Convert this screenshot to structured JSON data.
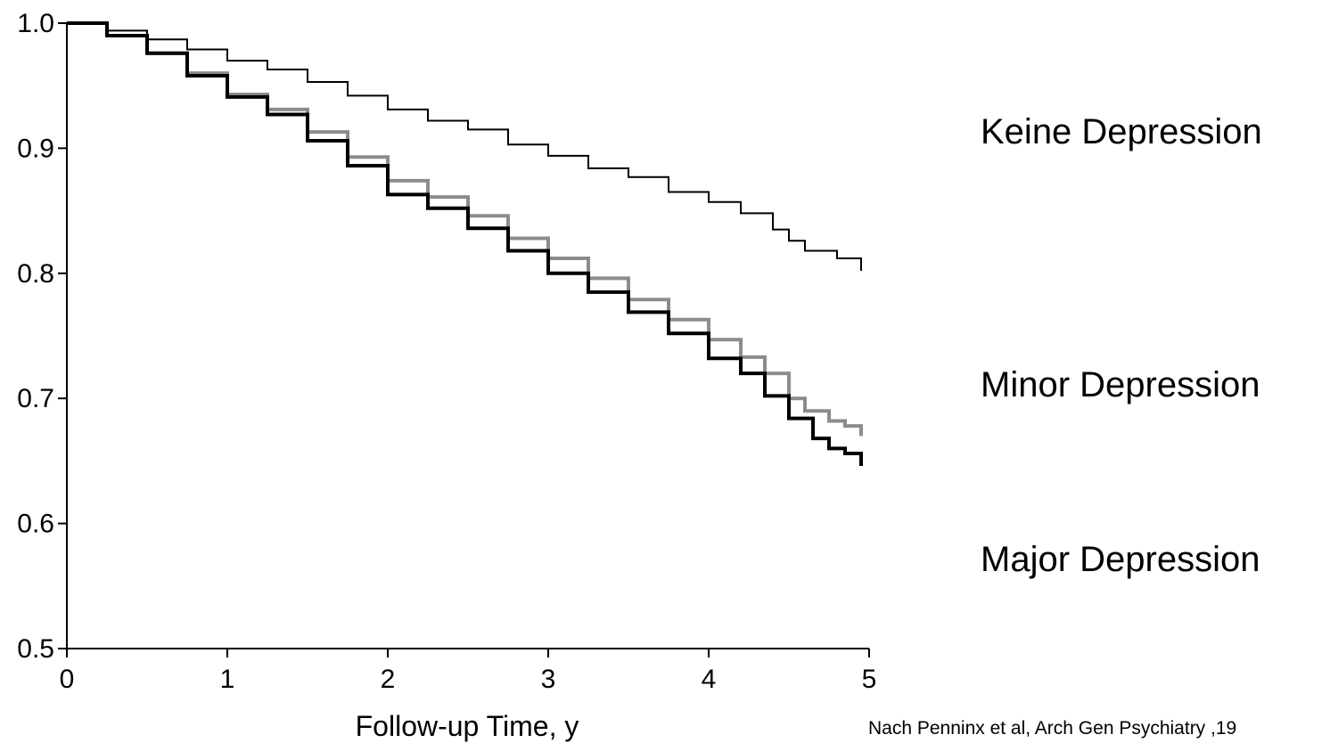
{
  "chart_data": {
    "type": "line",
    "title": "",
    "xlabel": "Follow-up Time, y",
    "ylabel": "",
    "xlim": [
      0,
      5
    ],
    "ylim": [
      0.5,
      1.0
    ],
    "x_ticks": [
      "0",
      "1",
      "2",
      "3",
      "4",
      "5"
    ],
    "y_ticks": [
      "0.5",
      "0.6",
      "0.7",
      "0.8",
      "0.9",
      "1.0"
    ],
    "grid": false,
    "legend_placement": "right",
    "series": [
      {
        "name": "Keine Depression",
        "color": "#000000",
        "points": [
          [
            0,
            1.0
          ],
          [
            0.25,
            0.994
          ],
          [
            0.5,
            0.987
          ],
          [
            0.75,
            0.979
          ],
          [
            1.0,
            0.97
          ],
          [
            1.25,
            0.963
          ],
          [
            1.5,
            0.953
          ],
          [
            1.75,
            0.942
          ],
          [
            2.0,
            0.931
          ],
          [
            2.25,
            0.922
          ],
          [
            2.5,
            0.915
          ],
          [
            2.75,
            0.903
          ],
          [
            3.0,
            0.894
          ],
          [
            3.25,
            0.884
          ],
          [
            3.5,
            0.877
          ],
          [
            3.75,
            0.865
          ],
          [
            4.0,
            0.857
          ],
          [
            4.2,
            0.848
          ],
          [
            4.4,
            0.835
          ],
          [
            4.5,
            0.826
          ],
          [
            4.6,
            0.818
          ],
          [
            4.8,
            0.812
          ],
          [
            4.95,
            0.802
          ]
        ]
      },
      {
        "name": "Minor Depression",
        "color": "#8c8c8c",
        "points": [
          [
            0,
            1.0
          ],
          [
            0.25,
            0.99
          ],
          [
            0.5,
            0.976
          ],
          [
            0.75,
            0.96
          ],
          [
            1.0,
            0.943
          ],
          [
            1.25,
            0.931
          ],
          [
            1.5,
            0.913
          ],
          [
            1.75,
            0.893
          ],
          [
            2.0,
            0.874
          ],
          [
            2.25,
            0.861
          ],
          [
            2.5,
            0.846
          ],
          [
            2.75,
            0.828
          ],
          [
            3.0,
            0.812
          ],
          [
            3.25,
            0.796
          ],
          [
            3.5,
            0.779
          ],
          [
            3.75,
            0.763
          ],
          [
            4.0,
            0.747
          ],
          [
            4.2,
            0.733
          ],
          [
            4.35,
            0.72
          ],
          [
            4.5,
            0.7
          ],
          [
            4.6,
            0.69
          ],
          [
            4.75,
            0.682
          ],
          [
            4.85,
            0.678
          ],
          [
            4.95,
            0.67
          ]
        ]
      },
      {
        "name": "Major Depression",
        "color": "#000000",
        "points": [
          [
            0,
            1.0
          ],
          [
            0.25,
            0.99
          ],
          [
            0.5,
            0.976
          ],
          [
            0.75,
            0.958
          ],
          [
            1.0,
            0.941
          ],
          [
            1.25,
            0.927
          ],
          [
            1.5,
            0.906
          ],
          [
            1.75,
            0.886
          ],
          [
            2.0,
            0.863
          ],
          [
            2.25,
            0.852
          ],
          [
            2.5,
            0.836
          ],
          [
            2.75,
            0.818
          ],
          [
            3.0,
            0.8
          ],
          [
            3.25,
            0.785
          ],
          [
            3.5,
            0.769
          ],
          [
            3.75,
            0.752
          ],
          [
            4.0,
            0.732
          ],
          [
            4.2,
            0.72
          ],
          [
            4.35,
            0.702
          ],
          [
            4.5,
            0.684
          ],
          [
            4.65,
            0.668
          ],
          [
            4.75,
            0.66
          ],
          [
            4.85,
            0.656
          ],
          [
            4.95,
            0.646
          ]
        ]
      }
    ]
  },
  "citation": "Nach Penninx et al, Arch Gen Psychiatry ,19"
}
